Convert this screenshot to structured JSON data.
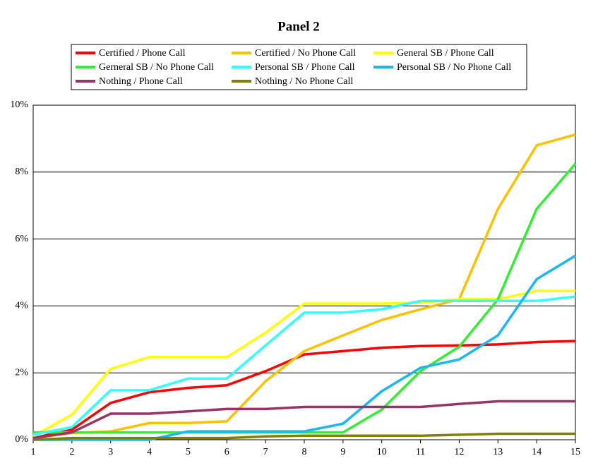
{
  "chart_data": {
    "type": "line",
    "title": "Panel 2",
    "x": [
      1,
      2,
      3,
      4,
      5,
      6,
      7,
      8,
      9,
      10,
      11,
      12,
      13,
      14,
      15
    ],
    "xlim": [
      1,
      15
    ],
    "xticks": [
      1,
      2,
      3,
      4,
      5,
      6,
      7,
      8,
      9,
      10,
      11,
      12,
      13,
      14,
      15
    ],
    "ylim": [
      0,
      10
    ],
    "yticks": [
      {
        "value": 0,
        "label": "0%"
      },
      {
        "value": 2,
        "label": "2%"
      },
      {
        "value": 4,
        "label": "4%"
      },
      {
        "value": 6,
        "label": "6%"
      },
      {
        "value": 8,
        "label": "8%"
      },
      {
        "value": 10,
        "label": "10%"
      }
    ],
    "grid": true,
    "legend": "top",
    "series": [
      {
        "name": "Certified / Phone Call",
        "color": "#ff0000",
        "values": [
          0.05,
          0.3,
          1.1,
          1.42,
          1.55,
          1.63,
          2.05,
          2.55,
          2.65,
          2.75,
          2.8,
          2.82,
          2.85,
          2.92,
          2.95
        ]
      },
      {
        "name": "Certified / No Phone Call",
        "color": "#ffc000",
        "values": [
          0.05,
          0.2,
          0.25,
          0.5,
          0.5,
          0.55,
          1.75,
          2.65,
          3.12,
          3.58,
          3.9,
          4.2,
          6.9,
          8.8,
          9.12
        ]
      },
      {
        "name": "General SB / Phone Call",
        "color": "#ffff00",
        "values": [
          0.1,
          0.75,
          2.12,
          2.47,
          2.47,
          2.47,
          3.2,
          4.07,
          4.07,
          4.07,
          4.1,
          4.2,
          4.2,
          4.45,
          4.45
        ]
      },
      {
        "name": "Gerneral SB / No Phone Call",
        "color": "#33ee33",
        "values": [
          0.22,
          0.22,
          0.22,
          0.22,
          0.22,
          0.22,
          0.22,
          0.22,
          0.22,
          0.9,
          2.05,
          2.78,
          4.2,
          6.9,
          8.25
        ]
      },
      {
        "name": "Personal SB / Phone Call",
        "color": "#33ffff",
        "values": [
          0.15,
          0.38,
          1.48,
          1.48,
          1.83,
          1.83,
          2.82,
          3.8,
          3.8,
          3.9,
          4.15,
          4.15,
          4.15,
          4.15,
          4.28
        ]
      },
      {
        "name": "Personal SB / No Phone Call",
        "color": "#1ab8f0",
        "values": [
          0,
          0,
          0,
          0,
          0.25,
          0.25,
          0.25,
          0.25,
          0.48,
          1.45,
          2.15,
          2.4,
          3.12,
          4.8,
          5.5
        ]
      },
      {
        "name": "Nothing / Phone Call",
        "color": "#993366",
        "values": [
          0.05,
          0.22,
          0.78,
          0.78,
          0.85,
          0.92,
          0.92,
          0.98,
          0.98,
          0.98,
          0.98,
          1.07,
          1.15,
          1.15,
          1.15
        ]
      },
      {
        "name": "Nothing / No Phone Call",
        "color": "#808000",
        "values": [
          0,
          0.05,
          0.05,
          0.05,
          0.05,
          0.05,
          0.1,
          0.12,
          0.12,
          0.12,
          0.12,
          0.15,
          0.18,
          0.18,
          0.18
        ]
      }
    ]
  }
}
